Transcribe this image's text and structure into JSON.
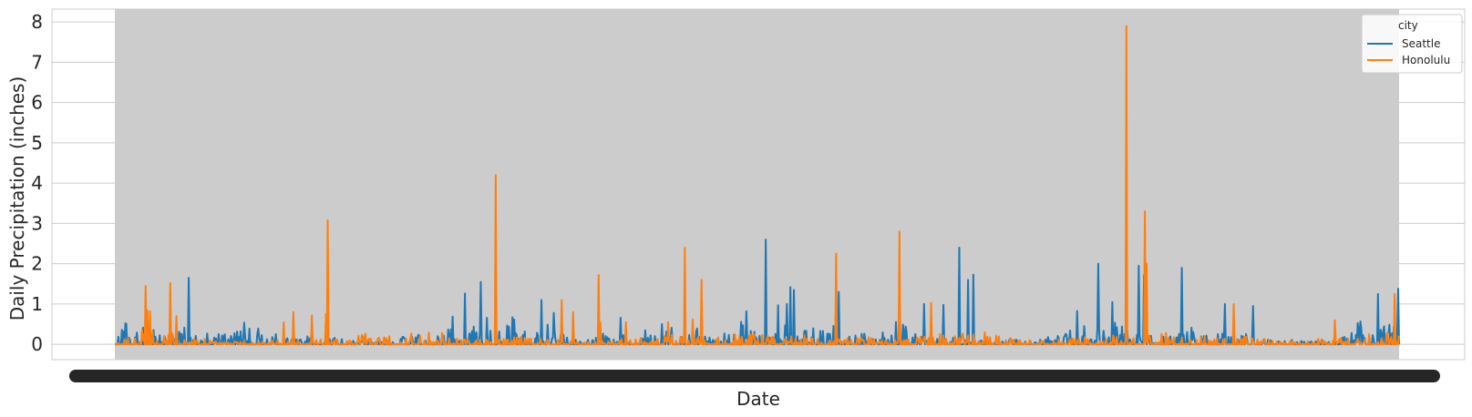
{
  "chart_data": {
    "type": "line",
    "title": "",
    "xlabel": "Date",
    "ylabel": "Daily Precipitation (inches)",
    "ylim": [
      -0.38,
      8.32
    ],
    "yticks": [
      0,
      1,
      2,
      3,
      4,
      5,
      6,
      7,
      8
    ],
    "grid": true,
    "legend": {
      "title": "city",
      "placement": "top-right"
    },
    "x_tick_labels_note": "",
    "n_points": 1461,
    "colors": {
      "Seattle": "#1f77b4",
      "Honolulu": "#ff7f0e",
      "band": "#cccccc",
      "grid": "#cccccc"
    },
    "series": [
      {
        "name": "Seattle",
        "peaks": [
          [
            8,
            0.58
          ],
          [
            13,
            0.55
          ],
          [
            22,
            0.42
          ],
          [
            40,
            0.5
          ],
          [
            46,
            0.35
          ],
          [
            55,
            0.22
          ],
          [
            75,
            0.4
          ],
          [
            82,
            0.55
          ],
          [
            85,
            0.42
          ],
          [
            88,
            0.65
          ],
          [
            93,
            0.28
          ],
          [
            103,
            0.35
          ],
          [
            115,
            0.35
          ],
          [
            120,
            0.25
          ],
          [
            127,
            0.55
          ],
          [
            135,
            0.6
          ],
          [
            140,
            0.35
          ],
          [
            143,
            0.55
          ],
          [
            150,
            0.58
          ],
          [
            157,
            0.45
          ],
          [
            167,
            0.52
          ],
          [
            171,
            0.28
          ],
          [
            179,
            0.3
          ],
          [
            195,
            0.2
          ],
          [
            205,
            0.15
          ],
          [
            233,
            0.25
          ],
          [
            240,
            0.22
          ],
          [
            262,
            0.12
          ],
          [
            290,
            0.08
          ],
          [
            318,
            0.15
          ],
          [
            330,
            0.2
          ],
          [
            343,
            0.25
          ],
          [
            355,
            0.28
          ],
          [
            362,
            0.25
          ],
          [
            377,
            0.35
          ],
          [
            384,
            0.8
          ],
          [
            389,
            0.9
          ],
          [
            395,
            1.25
          ],
          [
            400,
            0.6
          ],
          [
            410,
            0.55
          ],
          [
            418,
            0.4
          ],
          [
            425,
            0.85
          ],
          [
            430,
            0.35
          ],
          [
            437,
            0.65
          ],
          [
            443,
            0.45
          ],
          [
            452,
            0.75
          ],
          [
            455,
            0.8
          ],
          [
            462,
            0.5
          ],
          [
            468,
            0.35
          ],
          [
            474,
            0.8
          ],
          [
            478,
            0.45
          ],
          [
            483,
            0.45
          ],
          [
            488,
            0.65
          ],
          [
            493,
            0.45
          ],
          [
            498,
            0.3
          ],
          [
            503,
            0.35
          ],
          [
            508,
            0.3
          ],
          [
            513,
            0.25
          ],
          [
            520,
            0.35
          ],
          [
            525,
            0.25
          ],
          [
            533,
            0.2
          ],
          [
            545,
            0.15
          ],
          [
            552,
            0.25
          ],
          [
            560,
            0.3
          ],
          [
            567,
            0.2
          ],
          [
            575,
            0.3
          ],
          [
            590,
            0.22
          ],
          [
            597,
            0.35
          ],
          [
            610,
            0.38
          ],
          [
            626,
            0.6
          ],
          [
            633,
            0.45
          ],
          [
            641,
            0.55
          ],
          [
            648,
            0.35
          ],
          [
            655,
            0.35
          ],
          [
            665,
            0.45
          ],
          [
            673,
            0.35
          ],
          [
            681,
            0.25
          ],
          [
            697,
            0.3
          ],
          [
            711,
            0.6
          ],
          [
            720,
            0.32
          ],
          [
            729,
            0.45
          ],
          [
            737,
            0.55
          ],
          [
            746,
            0.25
          ],
          [
            754,
            0.32
          ],
          [
            761,
            0.62
          ],
          [
            771,
            0.5
          ],
          [
            778,
            0.22
          ],
          [
            787,
            0.4
          ],
          [
            795,
            0.6
          ],
          [
            802,
            0.6
          ],
          [
            810,
            0.42
          ],
          [
            816,
            0.45
          ],
          [
            822,
            0.5
          ],
          [
            830,
            0.3
          ],
          [
            838,
            0.25
          ],
          [
            845,
            0.3
          ],
          [
            852,
            0.35
          ],
          [
            859,
            0.25
          ],
          [
            866,
            0.3
          ],
          [
            872,
            0.45
          ],
          [
            880,
            0.2
          ],
          [
            888,
            0.65
          ],
          [
            897,
            0.5
          ],
          [
            905,
            0.35
          ],
          [
            912,
            0.3
          ],
          [
            920,
            0.3
          ],
          [
            935,
            0.25
          ],
          [
            944,
            0.2
          ],
          [
            957,
            0.15
          ],
          [
            972,
            0.1
          ],
          [
            988,
            0.1
          ],
          [
            1005,
            0.12
          ],
          [
            1020,
            0.12
          ],
          [
            1040,
            0.1
          ],
          [
            1055,
            0.12
          ],
          [
            1068,
            0.25
          ],
          [
            1086,
            0.35
          ],
          [
            1092,
            0.6
          ],
          [
            1101,
            0.45
          ],
          [
            1108,
            0.55
          ],
          [
            1115,
            0.4
          ],
          [
            1122,
            0.45
          ],
          [
            1128,
            0.6
          ],
          [
            1136,
            0.6
          ],
          [
            1143,
            0.55
          ],
          [
            1150,
            0.4
          ],
          [
            1158,
            0.2
          ],
          [
            1165,
            0.35
          ],
          [
            1172,
            0.2
          ],
          [
            1187,
            0.25
          ],
          [
            1199,
            0.4
          ],
          [
            1208,
            0.3
          ],
          [
            1217,
            0.35
          ],
          [
            1224,
            0.45
          ],
          [
            1232,
            0.35
          ],
          [
            1240,
            0.4
          ],
          [
            1247,
            0.3
          ],
          [
            1255,
            0.35
          ],
          [
            1262,
            0.25
          ],
          [
            1270,
            0.28
          ],
          [
            1277,
            0.22
          ],
          [
            1285,
            0.3
          ],
          [
            1300,
            0.2
          ],
          [
            1320,
            0.1
          ],
          [
            1340,
            0.12
          ],
          [
            1360,
            0.1
          ],
          [
            1385,
            0.1
          ],
          [
            1398,
            0.3
          ],
          [
            1408,
            0.45
          ],
          [
            1415,
            0.6
          ],
          [
            1420,
            0.55
          ],
          [
            1426,
            0.75
          ],
          [
            1432,
            0.55
          ],
          [
            1440,
            0.6
          ],
          [
            1447,
            0.45
          ],
          [
            1452,
            0.6
          ],
          [
            1457,
            0.5
          ]
        ],
        "spikes": [
          [
            84,
            1.65
          ],
          [
            398,
            1.26
          ],
          [
            416,
            1.55
          ],
          [
            485,
            1.1
          ],
          [
            499,
            0.78
          ],
          [
            575,
            0.66
          ],
          [
            718,
            0.82
          ],
          [
            740,
            2.6
          ],
          [
            754,
            0.97
          ],
          [
            764,
            1.0
          ],
          [
            768,
            1.42
          ],
          [
            772,
            1.35
          ],
          [
            823,
            1.3
          ],
          [
            920,
            1.0
          ],
          [
            942,
            0.98
          ],
          [
            960,
            2.4
          ],
          [
            970,
            1.6
          ],
          [
            976,
            1.73
          ],
          [
            1094,
            0.83
          ],
          [
            1118,
            2.0
          ],
          [
            1134,
            1.05
          ],
          [
            1164,
            1.95
          ],
          [
            1170,
            1.72
          ],
          [
            1213,
            1.9
          ],
          [
            1262,
            1.0
          ],
          [
            1294,
            0.95
          ],
          [
            1436,
            1.25
          ],
          [
            1459,
            1.38
          ]
        ]
      },
      {
        "name": "Honolulu",
        "peaks": [
          [
            5,
            0.05
          ],
          [
            30,
            0.35
          ],
          [
            40,
            0.55
          ],
          [
            50,
            0.2
          ],
          [
            60,
            0.35
          ],
          [
            75,
            0.2
          ],
          [
            100,
            0.15
          ],
          [
            120,
            0.1
          ],
          [
            140,
            0.08
          ],
          [
            170,
            0.12
          ],
          [
            200,
            0.1
          ],
          [
            230,
            0.15
          ],
          [
            260,
            0.1
          ],
          [
            290,
            0.35
          ],
          [
            318,
            0.25
          ],
          [
            340,
            0.3
          ],
          [
            360,
            0.4
          ],
          [
            380,
            0.2
          ],
          [
            405,
            0.15
          ],
          [
            430,
            0.12
          ],
          [
            460,
            0.2
          ],
          [
            480,
            0.15
          ],
          [
            520,
            0.1
          ],
          [
            550,
            0.1
          ],
          [
            590,
            0.15
          ],
          [
            620,
            0.3
          ],
          [
            650,
            0.2
          ],
          [
            680,
            0.15
          ],
          [
            700,
            0.25
          ],
          [
            730,
            0.3
          ],
          [
            760,
            0.2
          ],
          [
            790,
            0.3
          ],
          [
            820,
            0.15
          ],
          [
            845,
            0.2
          ],
          [
            870,
            0.15
          ],
          [
            900,
            0.15
          ],
          [
            925,
            0.3
          ],
          [
            950,
            0.25
          ],
          [
            990,
            0.3
          ],
          [
            1020,
            0.15
          ],
          [
            1050,
            0.1
          ],
          [
            1080,
            0.15
          ],
          [
            1110,
            0.2
          ],
          [
            1140,
            0.3
          ],
          [
            1160,
            0.2
          ],
          [
            1190,
            0.3
          ],
          [
            1220,
            0.2
          ],
          [
            1250,
            0.25
          ],
          [
            1280,
            0.2
          ],
          [
            1310,
            0.15
          ],
          [
            1340,
            0.1
          ],
          [
            1380,
            0.15
          ],
          [
            1410,
            0.2
          ],
          [
            1440,
            0.3
          ],
          [
            1455,
            0.35
          ]
        ],
        "spikes": [
          [
            35,
            1.45
          ],
          [
            37,
            0.84
          ],
          [
            40,
            0.82
          ],
          [
            63,
            1.52
          ],
          [
            70,
            0.7
          ],
          [
            192,
            0.55
          ],
          [
            203,
            0.8
          ],
          [
            224,
            0.72
          ],
          [
            240,
            0.75
          ],
          [
            242,
            3.08
          ],
          [
            376,
            0.05
          ],
          [
            433,
            4.2
          ],
          [
            508,
            1.1
          ],
          [
            521,
            0.8
          ],
          [
            550,
            1.72
          ],
          [
            552,
            0.55
          ],
          [
            581,
            0.55
          ],
          [
            629,
            0.55
          ],
          [
            648,
            2.4
          ],
          [
            657,
            0.62
          ],
          [
            667,
            1.6
          ],
          [
            820,
            2.25
          ],
          [
            892,
            2.8
          ],
          [
            928,
            1.03
          ],
          [
            1150,
            7.9
          ],
          [
            1171,
            3.3
          ],
          [
            1173,
            2.0
          ],
          [
            1272,
            1.0
          ],
          [
            1293,
            0.15
          ],
          [
            1387,
            0.6
          ],
          [
            1455,
            1.25
          ]
        ]
      }
    ]
  }
}
